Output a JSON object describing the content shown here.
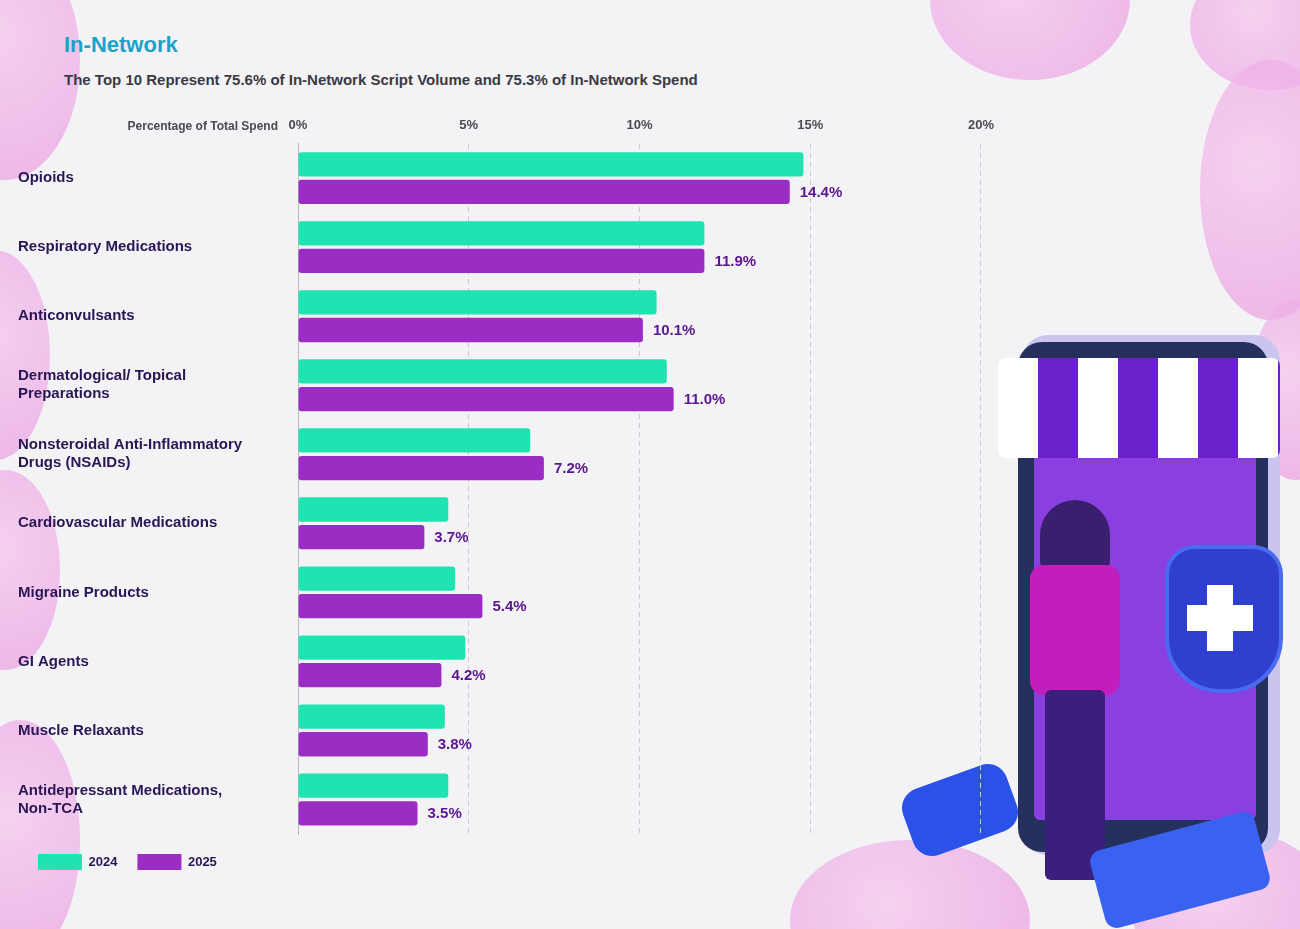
{
  "chart_data": {
    "type": "bar",
    "orientation": "horizontal",
    "title": "In-Network",
    "subtitle": "The Top 10 Represent 75.6% of In-Network Script Volume and 75.3% of In-Network Spend",
    "xlabel": "Percentage of Total Spend",
    "categories": [
      "Opioids",
      "Respiratory Medications",
      "Anticonvulsants",
      "Dermatological/ Topical Preparations",
      "Nonsteroidal Anti-Inflammatory Drugs (NSAIDs)",
      "Cardiovascular Medications",
      "Migraine Products",
      "GI Agents",
      "Muscle Relaxants",
      "Antidepressant Medications, Non-TCA"
    ],
    "series": [
      {
        "name": "2024",
        "color": "#1fe3b0",
        "values": [
          14.8,
          11.9,
          10.5,
          10.8,
          6.8,
          4.4,
          4.6,
          4.9,
          4.3,
          4.4
        ]
      },
      {
        "name": "2025",
        "color": "#9b2cc4",
        "values": [
          14.4,
          11.9,
          10.1,
          11.0,
          7.2,
          3.7,
          5.4,
          4.2,
          3.8,
          3.5
        ],
        "value_labels": [
          "14.4%",
          "11.9%",
          "10.1%",
          "11.0%",
          "7.2%",
          "3.7%",
          "5.4%",
          "4.2%",
          "3.8%",
          "3.5%"
        ],
        "data_labels": true
      }
    ],
    "xlim": [
      0,
      20
    ],
    "xticks": [
      {
        "value": 0,
        "label": "0%"
      },
      {
        "value": 5,
        "label": "5%"
      },
      {
        "value": 10,
        "label": "10%"
      },
      {
        "value": 15,
        "label": "15%"
      },
      {
        "value": 20,
        "label": "20%"
      }
    ],
    "grid": true,
    "legend": "bottom left"
  }
}
